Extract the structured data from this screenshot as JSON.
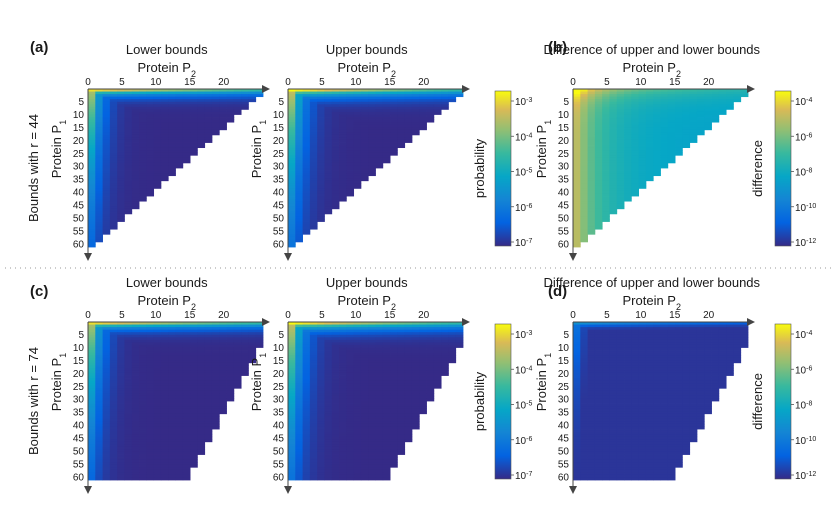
{
  "figure": {
    "panel_labels": [
      "(a)",
      "(b)",
      "(c)",
      "(d)"
    ],
    "row_labels": [
      "Bounds with r = 44",
      "Bounds with r = 74"
    ]
  },
  "chart_data": [
    {
      "id": "a1",
      "type": "heatmap",
      "panel": "(a)",
      "row": 1,
      "title": "Lower bounds",
      "xlabel": "Protein P2",
      "ylabel": "Protein P1",
      "x_ticks": [
        0,
        5,
        10,
        15,
        20
      ],
      "y_ticks": [
        5,
        10,
        15,
        20,
        25,
        30,
        35,
        40,
        45,
        50,
        55,
        60
      ],
      "xlim": [
        0,
        24
      ],
      "ylim": [
        0,
        61
      ],
      "r": 44,
      "notes": "Triangular domain; probability concentrated near P2 axis (P1 small) and near P1 axis (P2 small)."
    },
    {
      "id": "a2",
      "type": "heatmap",
      "panel": "(a)",
      "row": 1,
      "title": "Upper bounds",
      "xlabel": "Protein P2",
      "ylabel": "Protein P1",
      "x_ticks": [
        0,
        5,
        10,
        15,
        20
      ],
      "y_ticks": [
        5,
        10,
        15,
        20,
        25,
        30,
        35,
        40,
        45,
        50,
        55,
        60
      ],
      "xlim": [
        0,
        24
      ],
      "ylim": [
        0,
        61
      ],
      "r": 44
    },
    {
      "id": "a_cb",
      "type": "colorbar",
      "label": "probability",
      "scale": "log",
      "range": [
        1e-07,
        0.002
      ],
      "ticks": [
        "10-3",
        "10-4",
        "10-5",
        "10-6",
        "10-7"
      ],
      "colormap": "parula"
    },
    {
      "id": "b",
      "type": "heatmap",
      "panel": "(b)",
      "row": 1,
      "title": "Difference of upper and lower bounds",
      "xlabel": "Protein P2",
      "ylabel": "Protein P1",
      "x_ticks": [
        0,
        5,
        10,
        15,
        20
      ],
      "y_ticks": [
        5,
        10,
        15,
        20,
        25,
        30,
        35,
        40,
        45,
        50,
        55,
        60
      ],
      "xlim": [
        0,
        24
      ],
      "ylim": [
        0,
        61
      ],
      "r": 44,
      "notes": "Difference large (~1e-6..1e-5) over whole triangular domain, largest near P1 axis."
    },
    {
      "id": "b_cb",
      "type": "colorbar",
      "label": "difference",
      "scale": "log",
      "range": [
        1e-12,
        0.0005
      ],
      "ticks": [
        "10-4",
        "10-6",
        "10-8",
        "10-10",
        "10-12"
      ],
      "colormap": "parula"
    },
    {
      "id": "c1",
      "type": "heatmap",
      "panel": "(c)",
      "row": 2,
      "title": "Lower bounds",
      "xlabel": "Protein P2",
      "ylabel": "Protein P1",
      "x_ticks": [
        0,
        5,
        10,
        15,
        20
      ],
      "y_ticks": [
        5,
        10,
        15,
        20,
        25,
        30,
        35,
        40,
        45,
        50,
        55,
        60
      ],
      "xlim": [
        0,
        24
      ],
      "ylim": [
        0,
        61
      ],
      "r": 74
    },
    {
      "id": "c2",
      "type": "heatmap",
      "panel": "(c)",
      "row": 2,
      "title": "Upper bounds",
      "xlabel": "Protein P2",
      "ylabel": "Protein P1",
      "x_ticks": [
        0,
        5,
        10,
        15,
        20
      ],
      "y_ticks": [
        5,
        10,
        15,
        20,
        25,
        30,
        35,
        40,
        45,
        50,
        55,
        60
      ],
      "xlim": [
        0,
        24
      ],
      "ylim": [
        0,
        61
      ],
      "r": 74
    },
    {
      "id": "c_cb",
      "type": "colorbar",
      "label": "probability",
      "scale": "log",
      "range": [
        1e-07,
        0.002
      ],
      "ticks": [
        "10-3",
        "10-4",
        "10-5",
        "10-6",
        "10-7"
      ],
      "colormap": "parula"
    },
    {
      "id": "d",
      "type": "heatmap",
      "panel": "(d)",
      "row": 2,
      "title": "Difference of upper and lower bounds",
      "xlabel": "Protein P2",
      "ylabel": "Protein P1",
      "x_ticks": [
        0,
        5,
        10,
        15,
        20
      ],
      "y_ticks": [
        5,
        10,
        15,
        20,
        25,
        30,
        35,
        40,
        45,
        50,
        55,
        60
      ],
      "xlim": [
        0,
        24
      ],
      "ylim": [
        0,
        61
      ],
      "r": 74,
      "notes": "Difference small (~1e-12) almost everywhere, slightly larger near P1=0."
    },
    {
      "id": "d_cb",
      "type": "colorbar",
      "label": "difference",
      "scale": "log",
      "range": [
        1e-12,
        0.0005
      ],
      "ticks": [
        "10-4",
        "10-6",
        "10-8",
        "10-10",
        "10-12"
      ],
      "colormap": "parula"
    }
  ]
}
